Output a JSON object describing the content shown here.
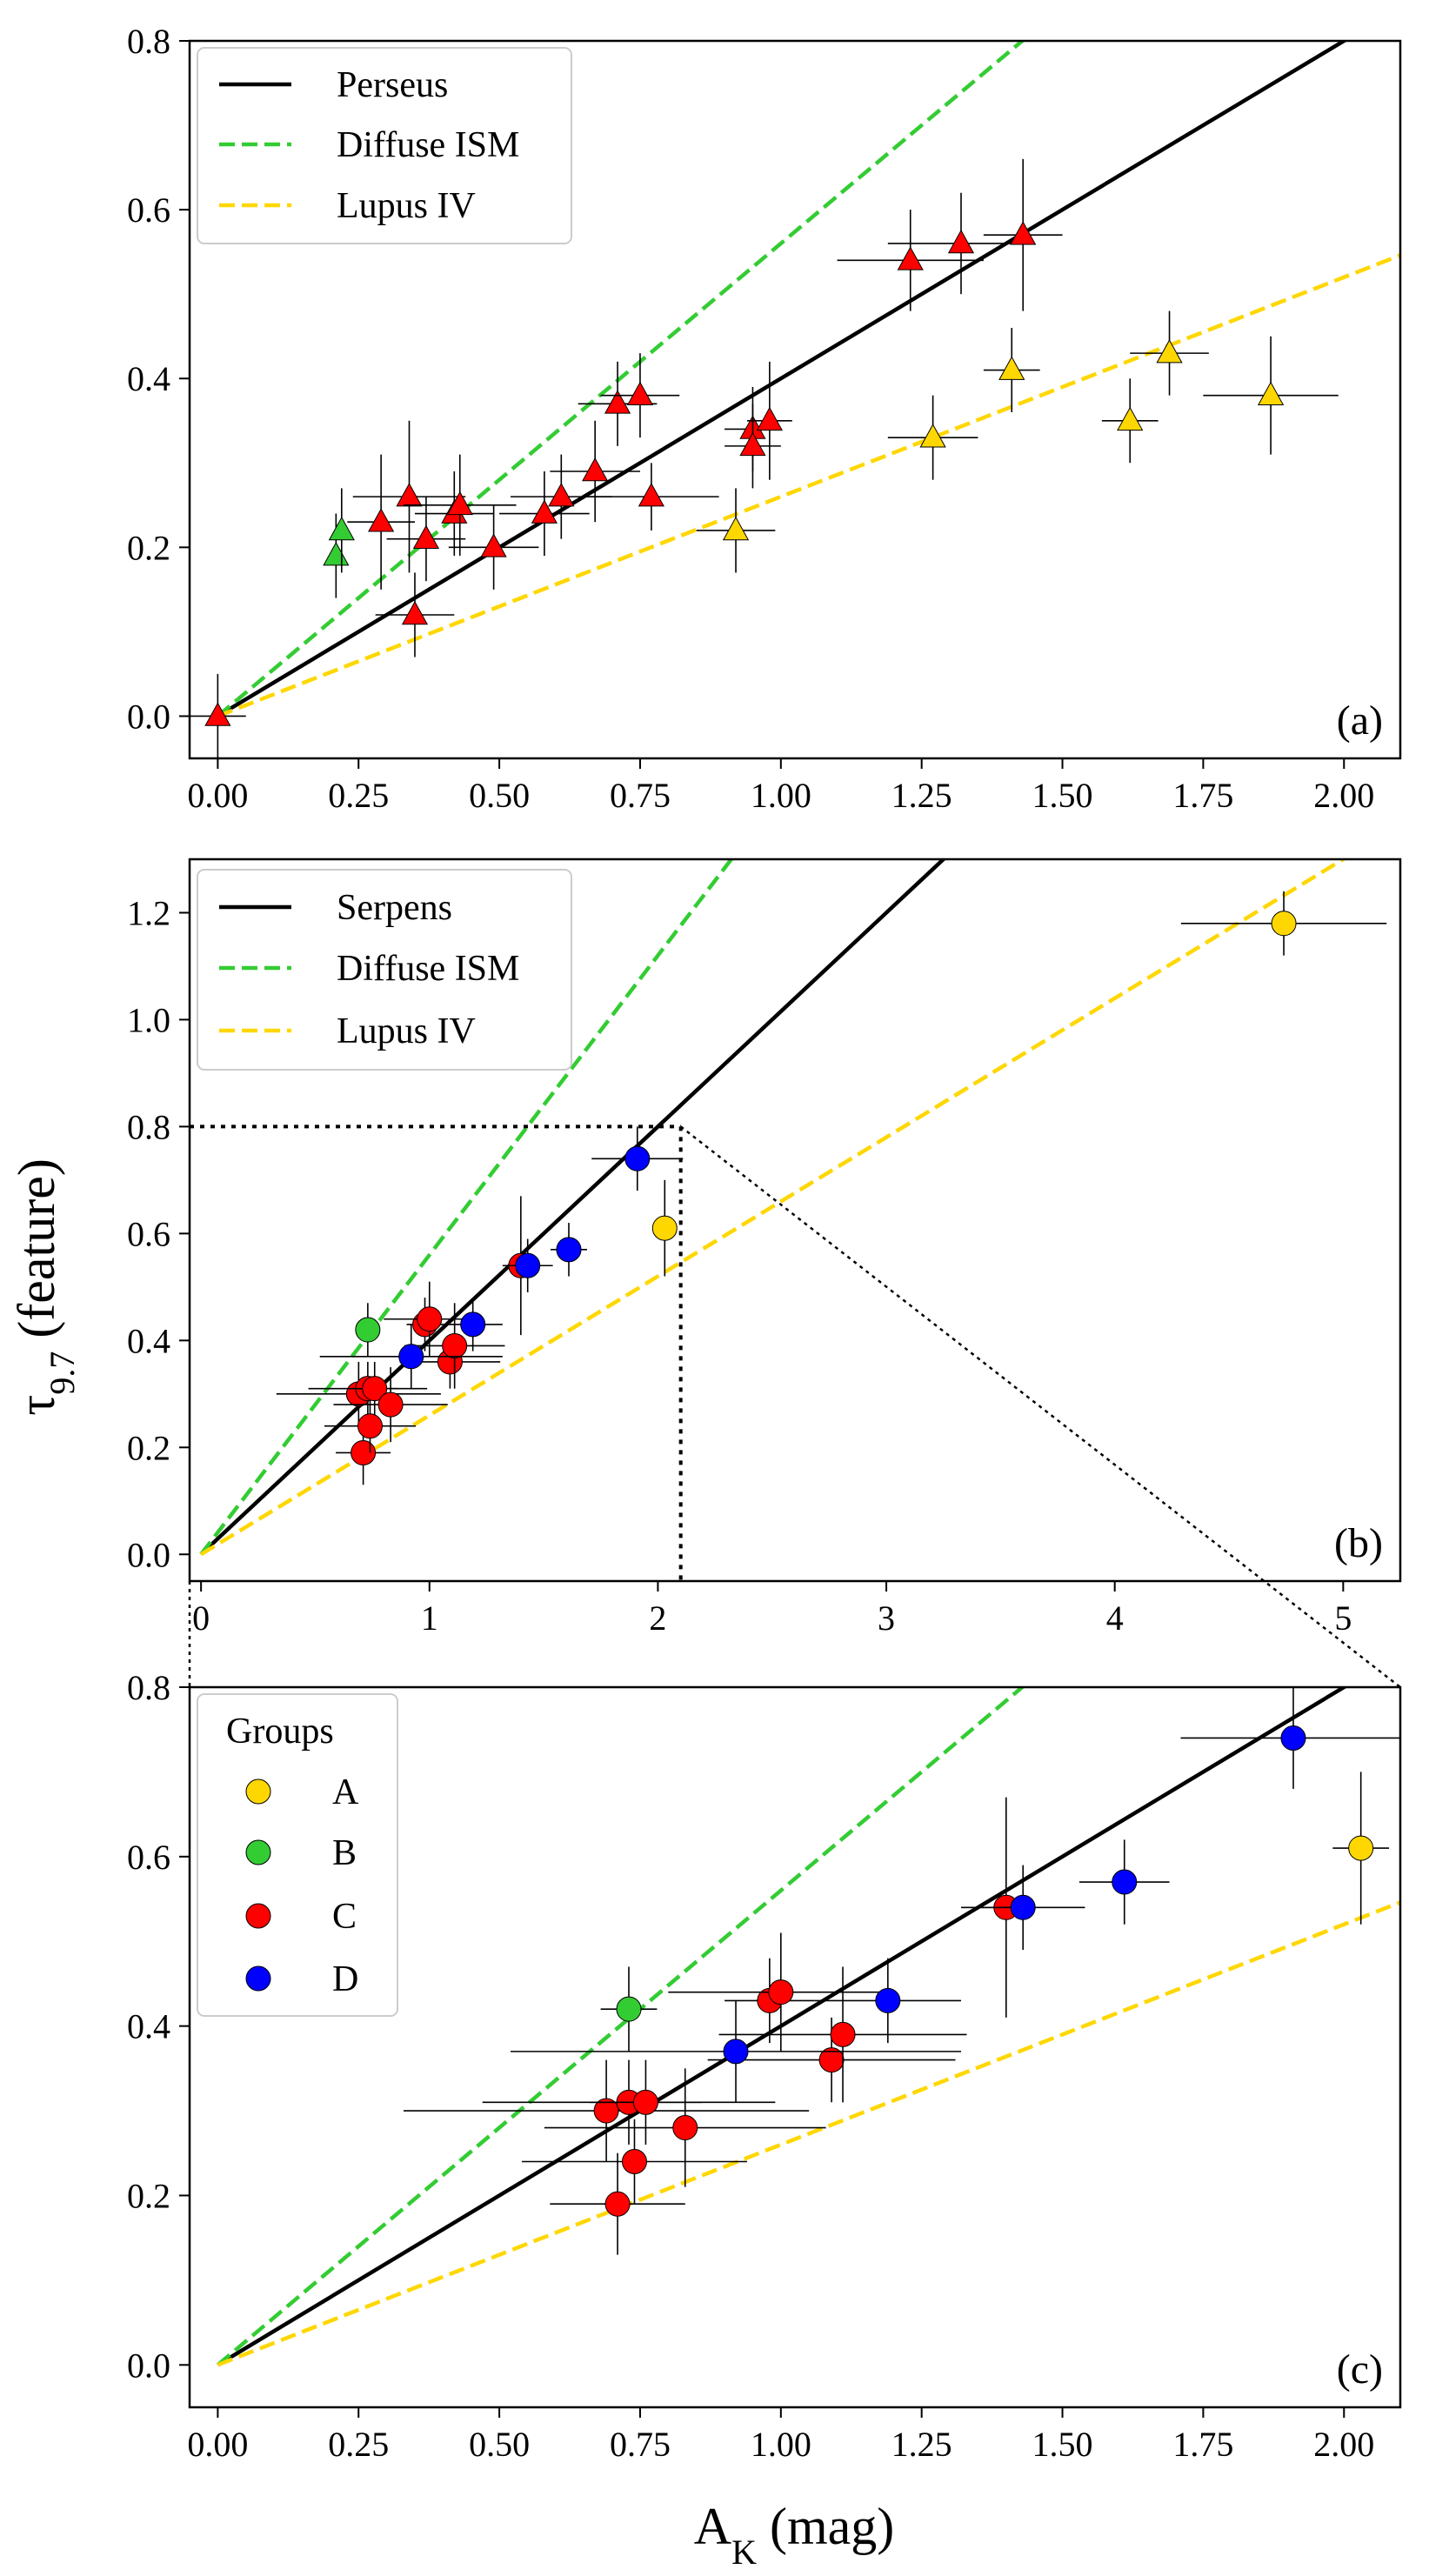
{
  "figure": {
    "ylabel_main": "τ",
    "ylabel_sub": "9.7",
    "ylabel_rest": " (feature)",
    "xlabel_main": "A",
    "xlabel_sub": "K",
    "xlabel_rest": " (mag)"
  },
  "colors": {
    "perseus": "#000000",
    "diffuse": "#33cc33",
    "lupus": "#ffd700",
    "group_A": "#ffd700",
    "group_B": "#33cc33",
    "group_C": "#ff0000",
    "group_D": "#0000ff"
  },
  "chart_data": [
    {
      "id": "a",
      "type": "scatter",
      "panel_label": "(a)",
      "marker": "triangle",
      "xlim": [
        -0.05,
        2.1
      ],
      "ylim": [
        -0.05,
        0.8
      ],
      "xticks": [
        0,
        0.25,
        0.5,
        0.75,
        1.0,
        1.25,
        1.5,
        1.75,
        2.0
      ],
      "xtick_labels": [
        "0.00",
        "0.25",
        "0.50",
        "0.75",
        "1.00",
        "1.25",
        "1.50",
        "1.75",
        "2.00"
      ],
      "yticks": [
        0,
        0.2,
        0.4,
        0.6,
        0.8
      ],
      "ytick_labels": [
        "0.0",
        "0.2",
        "0.4",
        "0.6",
        "0.8"
      ],
      "legend": [
        "Perseus",
        "Diffuse ISM",
        "Lupus IV"
      ],
      "lines": [
        {
          "name": "Perseus",
          "slope": 0.4,
          "style": "solid",
          "color": "#000000"
        },
        {
          "name": "Diffuse ISM",
          "slope": 0.56,
          "style": "dashed",
          "color": "#33cc33"
        },
        {
          "name": "Lupus IV",
          "slope": 0.26,
          "style": "dashed",
          "color": "#ffd700"
        }
      ],
      "series": [
        {
          "name": "green",
          "color": "#33cc33",
          "points": [
            [
              0.21,
              0.19,
              0.0,
              0.0,
              0.05
            ],
            [
              0.22,
              0.22,
              0.0,
              0.0,
              0.05
            ]
          ]
        },
        {
          "name": "red",
          "color": "#ff0000",
          "points": [
            [
              0.0,
              0.0,
              0.05,
              0.05,
              0.05
            ],
            [
              0.29,
              0.23,
              0.06,
              0.06,
              0.08
            ],
            [
              0.34,
              0.26,
              0.1,
              0.1,
              0.09
            ],
            [
              0.37,
              0.21,
              0.07,
              0.07,
              0.05
            ],
            [
              0.35,
              0.12,
              0.07,
              0.07,
              0.05
            ],
            [
              0.42,
              0.24,
              0.07,
              0.07,
              0.05
            ],
            [
              0.43,
              0.25,
              0.1,
              0.1,
              0.06
            ],
            [
              0.49,
              0.2,
              0.08,
              0.08,
              0.05
            ],
            [
              0.58,
              0.24,
              0.08,
              0.08,
              0.05
            ],
            [
              0.61,
              0.26,
              0.09,
              0.09,
              0.05
            ],
            [
              0.67,
              0.29,
              0.08,
              0.08,
              0.06
            ],
            [
              0.71,
              0.37,
              0.07,
              0.07,
              0.05
            ],
            [
              0.75,
              0.38,
              0.07,
              0.07,
              0.05
            ],
            [
              0.77,
              0.26,
              0.12,
              0.12,
              0.04
            ],
            [
              0.95,
              0.34,
              0.05,
              0.05,
              0.05
            ],
            [
              0.95,
              0.32,
              0.05,
              0.05,
              0.05
            ],
            [
              0.98,
              0.35,
              0.04,
              0.04,
              0.07
            ],
            [
              1.23,
              0.54,
              0.13,
              0.13,
              0.06
            ],
            [
              1.32,
              0.56,
              0.13,
              0.13,
              0.06
            ],
            [
              1.43,
              0.57,
              0.07,
              0.07,
              0.09
            ]
          ]
        },
        {
          "name": "yellow",
          "color": "#ffd700",
          "points": [
            [
              0.92,
              0.22,
              0.07,
              0.07,
              0.05
            ],
            [
              1.27,
              0.33,
              0.08,
              0.08,
              0.05
            ],
            [
              1.41,
              0.41,
              0.05,
              0.05,
              0.05
            ],
            [
              1.62,
              0.35,
              0.05,
              0.05,
              0.05
            ],
            [
              1.69,
              0.43,
              0.07,
              0.07,
              0.05
            ],
            [
              1.87,
              0.38,
              0.12,
              0.12,
              0.07
            ]
          ]
        }
      ]
    },
    {
      "id": "b",
      "type": "scatter",
      "panel_label": "(b)",
      "marker": "circle",
      "xlim": [
        -0.05,
        5.25
      ],
      "ylim": [
        -0.05,
        1.3
      ],
      "xticks": [
        0,
        1,
        2,
        3,
        4,
        5
      ],
      "xtick_labels": [
        "0",
        "1",
        "2",
        "3",
        "4",
        "5"
      ],
      "yticks": [
        0,
        0.2,
        0.4,
        0.6,
        0.8,
        1.0,
        1.2
      ],
      "ytick_labels": [
        "0.0",
        "0.2",
        "0.4",
        "0.6",
        "0.8",
        "1.0",
        "1.2"
      ],
      "legend": [
        "Serpens",
        "Diffuse ISM",
        "Lupus IV"
      ],
      "zoom_box": {
        "x": 2.1,
        "y": 0.8
      },
      "lines": [
        {
          "name": "Serpens",
          "slope": 0.4,
          "style": "solid",
          "color": "#000000"
        },
        {
          "name": "Diffuse ISM",
          "slope": 0.56,
          "style": "dashed",
          "color": "#33cc33"
        },
        {
          "name": "Lupus IV",
          "slope": 0.26,
          "style": "dashed",
          "color": "#ffd700"
        }
      ],
      "series": [
        {
          "name": "A",
          "color": "#ffd700",
          "points": [
            [
              2.03,
              0.61,
              0.05,
              0.05,
              0.09
            ],
            [
              4.74,
              1.18,
              0.45,
              0.45,
              0.06
            ]
          ]
        },
        {
          "name": "B",
          "color": "#33cc33",
          "points": [
            [
              0.73,
              0.42,
              0.05,
              0.05,
              0.05
            ]
          ]
        },
        {
          "name": "C",
          "color": "#ff0000",
          "points": [
            [
              0.69,
              0.3,
              0.36,
              0.36,
              0.06
            ],
            [
              0.71,
              0.19,
              0.12,
              0.12,
              0.06
            ],
            [
              0.73,
              0.31,
              0.26,
              0.26,
              0.05
            ],
            [
              0.74,
              0.24,
              0.2,
              0.2,
              0.05
            ],
            [
              0.76,
              0.31,
              0.1,
              0.1,
              0.05
            ],
            [
              0.83,
              0.28,
              0.25,
              0.25,
              0.07
            ],
            [
              0.98,
              0.43,
              0.08,
              0.08,
              0.05
            ],
            [
              1.0,
              0.44,
              0.2,
              0.2,
              0.07
            ],
            [
              1.09,
              0.36,
              0.22,
              0.22,
              0.05
            ],
            [
              1.11,
              0.39,
              0.22,
              0.22,
              0.08
            ],
            [
              1.4,
              0.54,
              0.05,
              0.05,
              0.13
            ]
          ]
        },
        {
          "name": "D",
          "color": "#0000ff",
          "points": [
            [
              0.92,
              0.37,
              0.4,
              0.4,
              0.06
            ],
            [
              1.19,
              0.43,
              0.13,
              0.13,
              0.05
            ],
            [
              1.43,
              0.54,
              0.11,
              0.11,
              0.05
            ],
            [
              1.61,
              0.57,
              0.08,
              0.08,
              0.05
            ],
            [
              1.91,
              0.74,
              0.2,
              0.2,
              0.06
            ]
          ]
        }
      ]
    },
    {
      "id": "c",
      "type": "scatter",
      "panel_label": "(c)",
      "marker": "circle",
      "xlim": [
        -0.05,
        2.1
      ],
      "ylim": [
        -0.05,
        0.8
      ],
      "xticks": [
        0,
        0.25,
        0.5,
        0.75,
        1.0,
        1.25,
        1.5,
        1.75,
        2.0
      ],
      "xtick_labels": [
        "0.00",
        "0.25",
        "0.50",
        "0.75",
        "1.00",
        "1.25",
        "1.50",
        "1.75",
        "2.00"
      ],
      "yticks": [
        0,
        0.2,
        0.4,
        0.6,
        0.8
      ],
      "ytick_labels": [
        "0.0",
        "0.2",
        "0.4",
        "0.6",
        "0.8"
      ],
      "legend_title": "Groups",
      "legend": [
        "A",
        "B",
        "C",
        "D"
      ],
      "lines": [
        {
          "name": "Serpens",
          "slope": 0.4,
          "style": "solid",
          "color": "#000000"
        },
        {
          "name": "Diffuse ISM",
          "slope": 0.56,
          "style": "dashed",
          "color": "#33cc33"
        },
        {
          "name": "Lupus IV",
          "slope": 0.26,
          "style": "dashed",
          "color": "#ffd700"
        }
      ],
      "series": [
        {
          "name": "A",
          "color": "#ffd700",
          "points": [
            [
              2.03,
              0.61,
              0.05,
              0.05,
              0.09
            ]
          ]
        },
        {
          "name": "B",
          "color": "#33cc33",
          "points": [
            [
              0.73,
              0.42,
              0.05,
              0.05,
              0.05
            ]
          ]
        },
        {
          "name": "C",
          "color": "#ff0000",
          "points": [
            [
              0.69,
              0.3,
              0.36,
              0.36,
              0.06
            ],
            [
              0.71,
              0.19,
              0.12,
              0.12,
              0.06
            ],
            [
              0.73,
              0.31,
              0.26,
              0.26,
              0.05
            ],
            [
              0.74,
              0.24,
              0.2,
              0.2,
              0.05
            ],
            [
              0.76,
              0.31,
              0.1,
              0.1,
              0.05
            ],
            [
              0.83,
              0.28,
              0.25,
              0.25,
              0.07
            ],
            [
              0.98,
              0.43,
              0.08,
              0.08,
              0.05
            ],
            [
              1.0,
              0.44,
              0.2,
              0.2,
              0.07
            ],
            [
              1.09,
              0.36,
              0.22,
              0.22,
              0.05
            ],
            [
              1.11,
              0.39,
              0.22,
              0.22,
              0.08
            ],
            [
              1.4,
              0.54,
              0.05,
              0.05,
              0.13
            ]
          ]
        },
        {
          "name": "D",
          "color": "#0000ff",
          "points": [
            [
              0.92,
              0.37,
              0.4,
              0.4,
              0.06
            ],
            [
              1.19,
              0.43,
              0.13,
              0.13,
              0.05
            ],
            [
              1.43,
              0.54,
              0.11,
              0.11,
              0.05
            ],
            [
              1.61,
              0.57,
              0.08,
              0.08,
              0.05
            ],
            [
              1.91,
              0.74,
              0.2,
              0.2,
              0.06
            ]
          ]
        }
      ]
    }
  ]
}
